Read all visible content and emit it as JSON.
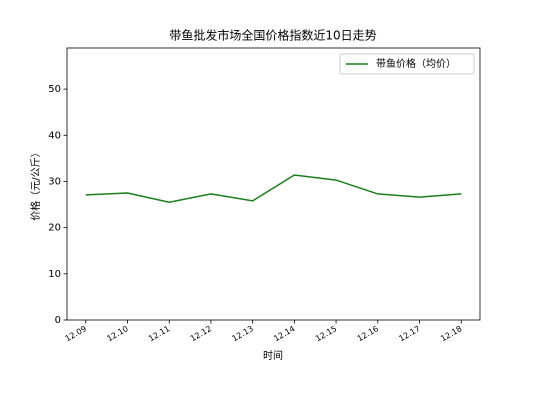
{
  "chart_data": {
    "type": "line",
    "title": "带鱼批发市场全国价格指数近10日走势",
    "xlabel": "时间",
    "ylabel": "价格（元/公斤）",
    "categories": [
      "12.09",
      "12.10",
      "12.11",
      "12.12",
      "12.13",
      "12.14",
      "12.15",
      "12.16",
      "12.17",
      "12.18"
    ],
    "series": [
      {
        "name": "带鱼价格（均价）",
        "color": "#1a7f1a",
        "values": [
          27.1,
          27.5,
          25.5,
          27.3,
          25.8,
          31.4,
          30.3,
          27.3,
          26.6,
          27.3
        ]
      }
    ],
    "ylim": [
      0,
      58.9
    ],
    "yticks": [
      0,
      10,
      20,
      30,
      40,
      50
    ],
    "legend": "upper right",
    "grid": false
  }
}
